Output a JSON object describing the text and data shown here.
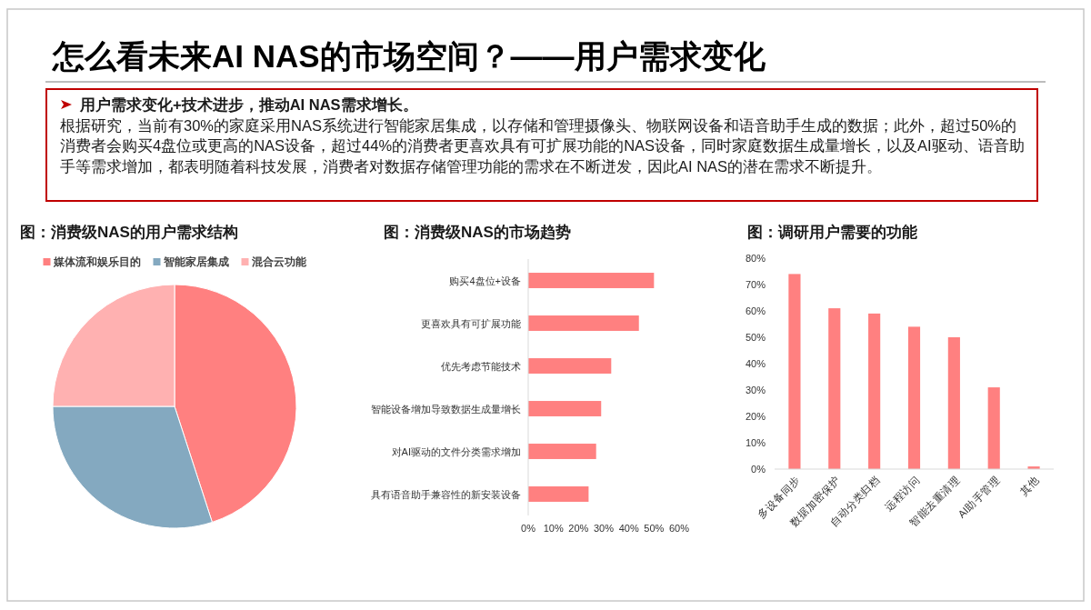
{
  "chart_data": [
    {
      "type": "other",
      "title": "怎么看未来AI NAS的市场空间？——用户需求变化",
      "annotations": [
        "用户需求变化+技术进步，推动AI NAS需求增长。",
        "根据研究，当前有30%的家庭采用NAS系统进行智能家居集成，以存储和管理摄像头、物联网设备和语音助手生成的数据；此外，超过50%的消费者会购买4盘位或更高的NAS设备，超过44%的消费者更喜欢具有可扩展功能的NAS设备，同时家庭数据生成量增长，以及AI驱动、语音助手等需求增加，都表明随着科技发展，消费者对数据存储管理功能的需求在不断迸发，因此AI NAS的潜在需求不断提升。"
      ]
    },
    {
      "type": "pie",
      "title": "图：消费级NAS的用户需求结构",
      "categories": [
        "媒体流和娱乐目的",
        "智能家居集成",
        "混合云功能"
      ],
      "values": [
        45,
        30,
        25
      ],
      "colors": [
        "#ff8080",
        "#84a9c0",
        "#ffb1b1"
      ],
      "legend": "top"
    },
    {
      "type": "bar",
      "orientation": "horizontal",
      "title": "图：消费级NAS的市场趋势",
      "categories": [
        "购买4盘位+设备",
        "更喜欢具有可扩展功能",
        "优先考虑节能技术",
        "智能设备增加导致数据生成量增长",
        "对AI驱动的文件分类需求增加",
        "具有语音助手兼容性的新安装设备"
      ],
      "values": [
        50,
        44,
        33,
        29,
        27,
        24
      ],
      "color": "#ff8080",
      "xlim": [
        0,
        60
      ],
      "xticks": [
        {
          "value": 0,
          "label": "0%"
        },
        {
          "value": 10,
          "label": "10%"
        },
        {
          "value": 20,
          "label": "20%"
        },
        {
          "value": 30,
          "label": "30%"
        },
        {
          "value": 40,
          "label": "40%"
        },
        {
          "value": 50,
          "label": "50%"
        },
        {
          "value": 60,
          "label": "60%"
        }
      ]
    },
    {
      "type": "bar",
      "title": "图：调研用户需要的功能",
      "categories": [
        "多设备同步",
        "数据加密保护",
        "自动分类归档",
        "远程访问",
        "智能去重清理",
        "AI助手管理",
        "其他"
      ],
      "values": [
        74,
        61,
        59,
        54,
        50,
        31,
        1
      ],
      "color": "#ff8080",
      "ylim": [
        0,
        80
      ],
      "yticks": [
        {
          "value": 0,
          "label": "0%"
        },
        {
          "value": 10,
          "label": "10%"
        },
        {
          "value": 20,
          "label": "20%"
        },
        {
          "value": 30,
          "label": "30%"
        },
        {
          "value": 40,
          "label": "40%"
        },
        {
          "value": 50,
          "label": "50%"
        },
        {
          "value": 60,
          "label": "60%"
        },
        {
          "value": 70,
          "label": "70%"
        },
        {
          "value": 80,
          "label": "80%"
        }
      ]
    }
  ]
}
